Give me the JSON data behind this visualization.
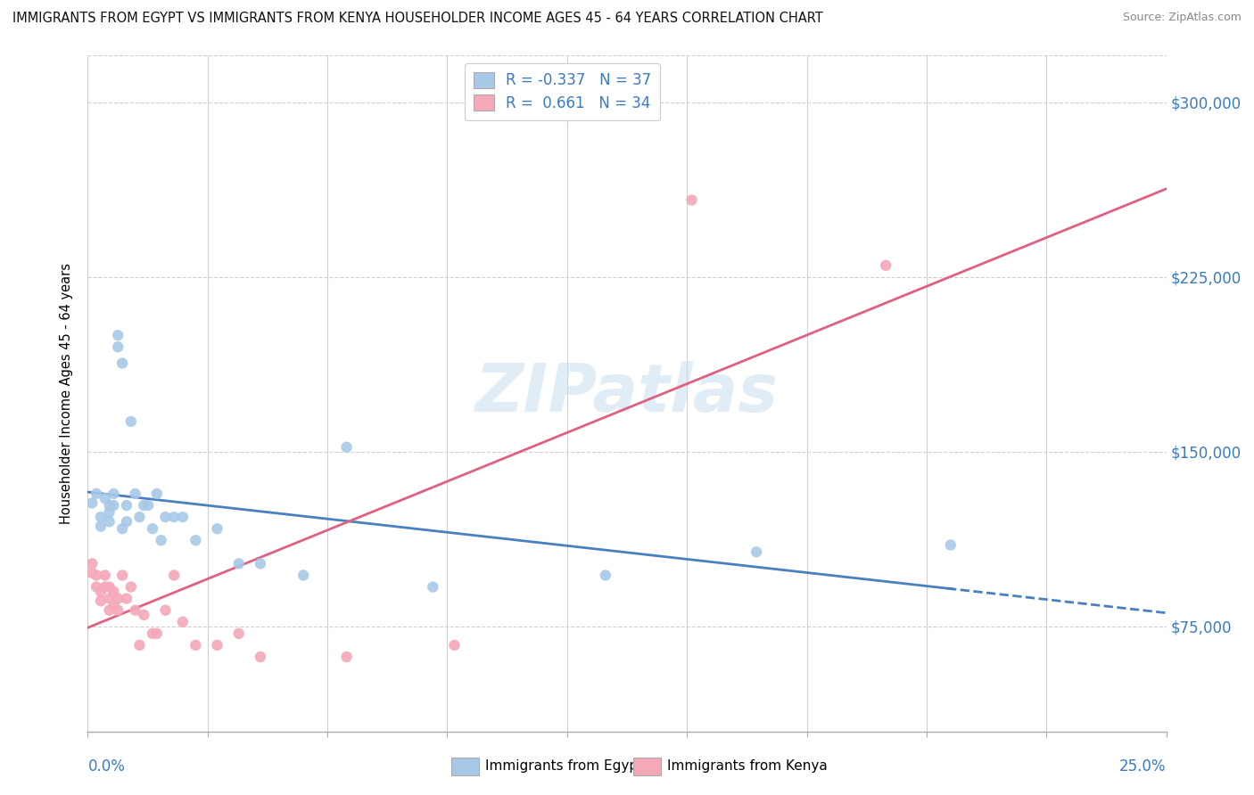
{
  "title": "IMMIGRANTS FROM EGYPT VS IMMIGRANTS FROM KENYA HOUSEHOLDER INCOME AGES 45 - 64 YEARS CORRELATION CHART",
  "source": "Source: ZipAtlas.com",
  "ylabel": "Householder Income Ages 45 - 64 years",
  "watermark": "ZIPatlas",
  "egypt_R": -0.337,
  "egypt_N": 37,
  "kenya_R": 0.661,
  "kenya_N": 34,
  "egypt_color": "#a8c8e8",
  "kenya_color": "#f4a8b8",
  "egypt_line_color": "#4a7fc0",
  "kenya_line_color": "#e06080",
  "xmin": 0.0,
  "xmax": 0.25,
  "ymin": 30000,
  "ymax": 320000,
  "yticks": [
    75000,
    150000,
    225000,
    300000
  ],
  "ytick_labels": [
    "$75,000",
    "$150,000",
    "$225,000",
    "$300,000"
  ],
  "egypt_x": [
    0.001,
    0.002,
    0.003,
    0.003,
    0.004,
    0.005,
    0.005,
    0.005,
    0.006,
    0.006,
    0.007,
    0.007,
    0.008,
    0.008,
    0.009,
    0.009,
    0.01,
    0.011,
    0.012,
    0.013,
    0.014,
    0.015,
    0.016,
    0.017,
    0.018,
    0.02,
    0.022,
    0.025,
    0.03,
    0.035,
    0.04,
    0.05,
    0.06,
    0.08,
    0.12,
    0.155,
    0.2
  ],
  "egypt_y": [
    128000,
    132000,
    122000,
    118000,
    130000,
    127000,
    124000,
    120000,
    132000,
    127000,
    200000,
    195000,
    188000,
    117000,
    127000,
    120000,
    163000,
    132000,
    122000,
    127000,
    127000,
    117000,
    132000,
    112000,
    122000,
    122000,
    122000,
    112000,
    117000,
    102000,
    102000,
    97000,
    152000,
    92000,
    97000,
    107000,
    110000
  ],
  "kenya_x": [
    0.001,
    0.001,
    0.002,
    0.002,
    0.003,
    0.003,
    0.004,
    0.004,
    0.005,
    0.005,
    0.005,
    0.006,
    0.006,
    0.007,
    0.007,
    0.008,
    0.009,
    0.01,
    0.011,
    0.012,
    0.013,
    0.015,
    0.016,
    0.018,
    0.02,
    0.022,
    0.025,
    0.03,
    0.035,
    0.04,
    0.06,
    0.085,
    0.14,
    0.185
  ],
  "kenya_y": [
    102000,
    98000,
    97000,
    92000,
    90000,
    86000,
    92000,
    97000,
    87000,
    92000,
    82000,
    90000,
    84000,
    87000,
    82000,
    97000,
    87000,
    92000,
    82000,
    67000,
    80000,
    72000,
    72000,
    82000,
    97000,
    77000,
    67000,
    67000,
    72000,
    62000,
    62000,
    67000,
    258000,
    230000
  ],
  "background_color": "#ffffff",
  "grid_color": "#d0d0d0"
}
